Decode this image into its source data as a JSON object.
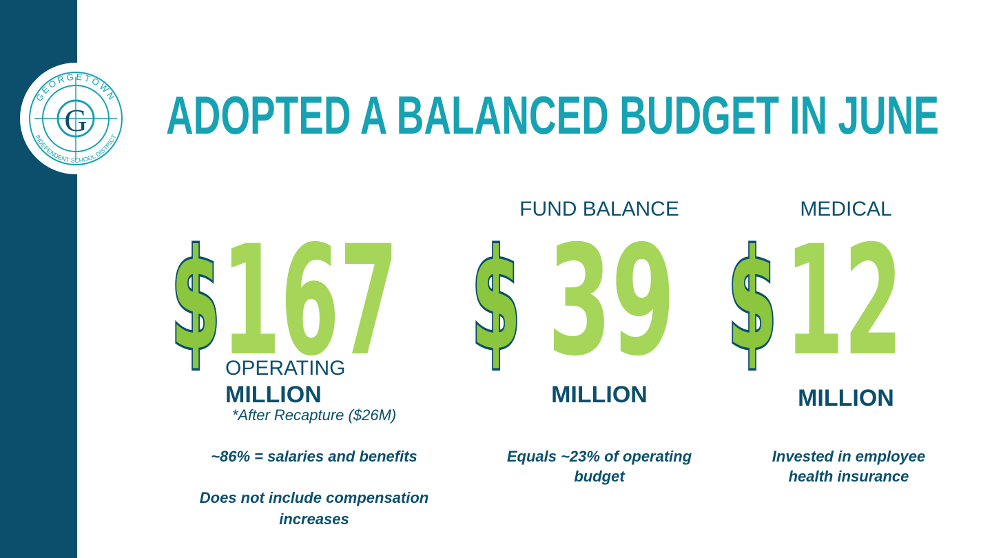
{
  "logo": {
    "top": "GEORGETOWN",
    "letter": "G",
    "bottom": "INDEPENDENT SCHOOL DISTRICT"
  },
  "title": "ADOPTED A BALANCED BUDGET IN JUNE",
  "columns": [
    {
      "currency": "$",
      "amount": "167",
      "label": "OPERATING",
      "unit": "MILLION",
      "footnote": "*After Recapture ($26M)",
      "notes": [
        [
          "~86% = salaries and benefits"
        ],
        [
          "Does not include compensation",
          "increases"
        ]
      ]
    },
    {
      "label": "FUND BALANCE",
      "currency": "$",
      "amount": "39",
      "unit": "MILLION",
      "notes": [
        [
          "Equals ~23% of operating",
          "budget"
        ]
      ]
    },
    {
      "label": "MEDICAL",
      "currency": "$",
      "amount": "12",
      "unit": "MILLION",
      "notes": [
        [
          "Invested in employee",
          "health insurance"
        ]
      ]
    }
  ]
}
